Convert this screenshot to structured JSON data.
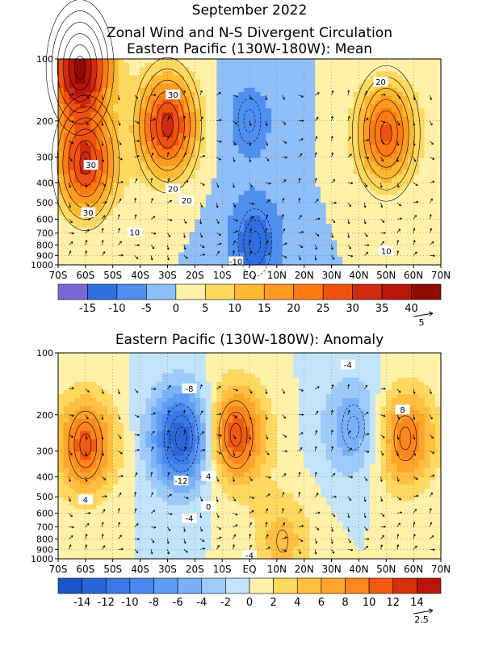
{
  "page": {
    "title_line1": "September 2022",
    "title_line2": "Zonal Wind and N-S Divergent Circulation"
  },
  "chart_data": [
    {
      "type": "heatmap",
      "title": "Eastern Pacific (130W-180W): Mean",
      "x_ticks": [
        "70S",
        "60S",
        "50S",
        "40S",
        "30S",
        "20S",
        "10S",
        "EQ",
        "10N",
        "20N",
        "30N",
        "40N",
        "50N",
        "60N",
        "70N"
      ],
      "x_values": [
        -70,
        -60,
        -50,
        -40,
        -30,
        -20,
        -10,
        0,
        10,
        20,
        30,
        40,
        50,
        60,
        70
      ],
      "y_ticks": [
        "100",
        "200",
        "300",
        "400",
        "500",
        "600",
        "700",
        "800",
        "900",
        "1000"
      ],
      "y_values": [
        100,
        200,
        300,
        400,
        500,
        600,
        700,
        800,
        900,
        1000
      ],
      "y_scale": "log",
      "xlim": [
        -70,
        70
      ],
      "ylim": [
        1000,
        100
      ],
      "colorbar": {
        "labels": [
          "-15",
          "-10",
          "-5",
          "0",
          "5",
          "10",
          "15",
          "20",
          "25",
          "30",
          "35",
          "40"
        ],
        "bounds": [
          -20,
          -15,
          -10,
          -5,
          0,
          5,
          10,
          15,
          20,
          25,
          30,
          35,
          40,
          45
        ],
        "colors": [
          "#7b68d8",
          "#2f6fe0",
          "#4f8ff0",
          "#8fbff8",
          "#fff1a8",
          "#ffd860",
          "#ffb830",
          "#ff9a20",
          "#ff7a10",
          "#f05010",
          "#d02a10",
          "#b81408",
          "#900a00"
        ]
      },
      "vector_reference": "5",
      "contour_labels": [
        "30",
        "20",
        "20",
        "30",
        "30",
        "20",
        "10",
        "10",
        "-10"
      ],
      "field_centers": [
        {
          "lat": -62,
          "p": 110,
          "value": 42
        },
        {
          "lat": -60,
          "p": 320,
          "value": 31
        },
        {
          "lat": -30,
          "p": 210,
          "value": 32
        },
        {
          "lat": 50,
          "p": 230,
          "value": 26
        },
        {
          "lat": 2,
          "p": 780,
          "value": -13
        },
        {
          "lat": 0,
          "p": 200,
          "value": -8
        }
      ]
    },
    {
      "type": "heatmap",
      "title": "Eastern Pacific (130W-180W): Anomaly",
      "x_ticks": [
        "70S",
        "60S",
        "50S",
        "40S",
        "30S",
        "20S",
        "10S",
        "EQ",
        "10N",
        "20N",
        "30N",
        "40N",
        "50N",
        "60N",
        "70N"
      ],
      "x_values": [
        -70,
        -60,
        -50,
        -40,
        -30,
        -20,
        -10,
        0,
        10,
        20,
        30,
        40,
        50,
        60,
        70
      ],
      "y_ticks": [
        "100",
        "200",
        "300",
        "400",
        "500",
        "600",
        "700",
        "800",
        "900",
        "1000"
      ],
      "y_values": [
        100,
        200,
        300,
        400,
        500,
        600,
        700,
        800,
        900,
        1000
      ],
      "y_scale": "log",
      "xlim": [
        -70,
        70
      ],
      "ylim": [
        1000,
        100
      ],
      "colorbar": {
        "labels": [
          "-14",
          "-12",
          "-10",
          "-8",
          "-6",
          "-4",
          "-2",
          "0",
          "2",
          "4",
          "6",
          "8",
          "10",
          "12",
          "14"
        ],
        "bounds": [
          -16,
          -14,
          -12,
          -10,
          -8,
          -6,
          -4,
          -2,
          0,
          2,
          4,
          6,
          8,
          10,
          12,
          14,
          16
        ],
        "colors": [
          "#1a55c8",
          "#2a66d8",
          "#3b78e6",
          "#4a8af0",
          "#5f9cf4",
          "#7bb1f7",
          "#9ecaf9",
          "#c2e4fb",
          "#fff1a8",
          "#ffd860",
          "#ffbf40",
          "#ffa42a",
          "#ff861a",
          "#f05a12",
          "#d8300c",
          "#b81408"
        ]
      },
      "vector_reference": "2.5",
      "contour_labels": [
        "-8",
        "-12",
        "4",
        "4",
        "8",
        "-4",
        "-4",
        "0",
        "-4"
      ],
      "field_centers": [
        {
          "lat": -60,
          "p": 280,
          "value": 11
        },
        {
          "lat": -25,
          "p": 260,
          "value": -14
        },
        {
          "lat": -5,
          "p": 250,
          "value": 12
        },
        {
          "lat": 38,
          "p": 230,
          "value": -6
        },
        {
          "lat": 57,
          "p": 260,
          "value": 10
        },
        {
          "lat": 12,
          "p": 820,
          "value": 5
        }
      ]
    }
  ]
}
